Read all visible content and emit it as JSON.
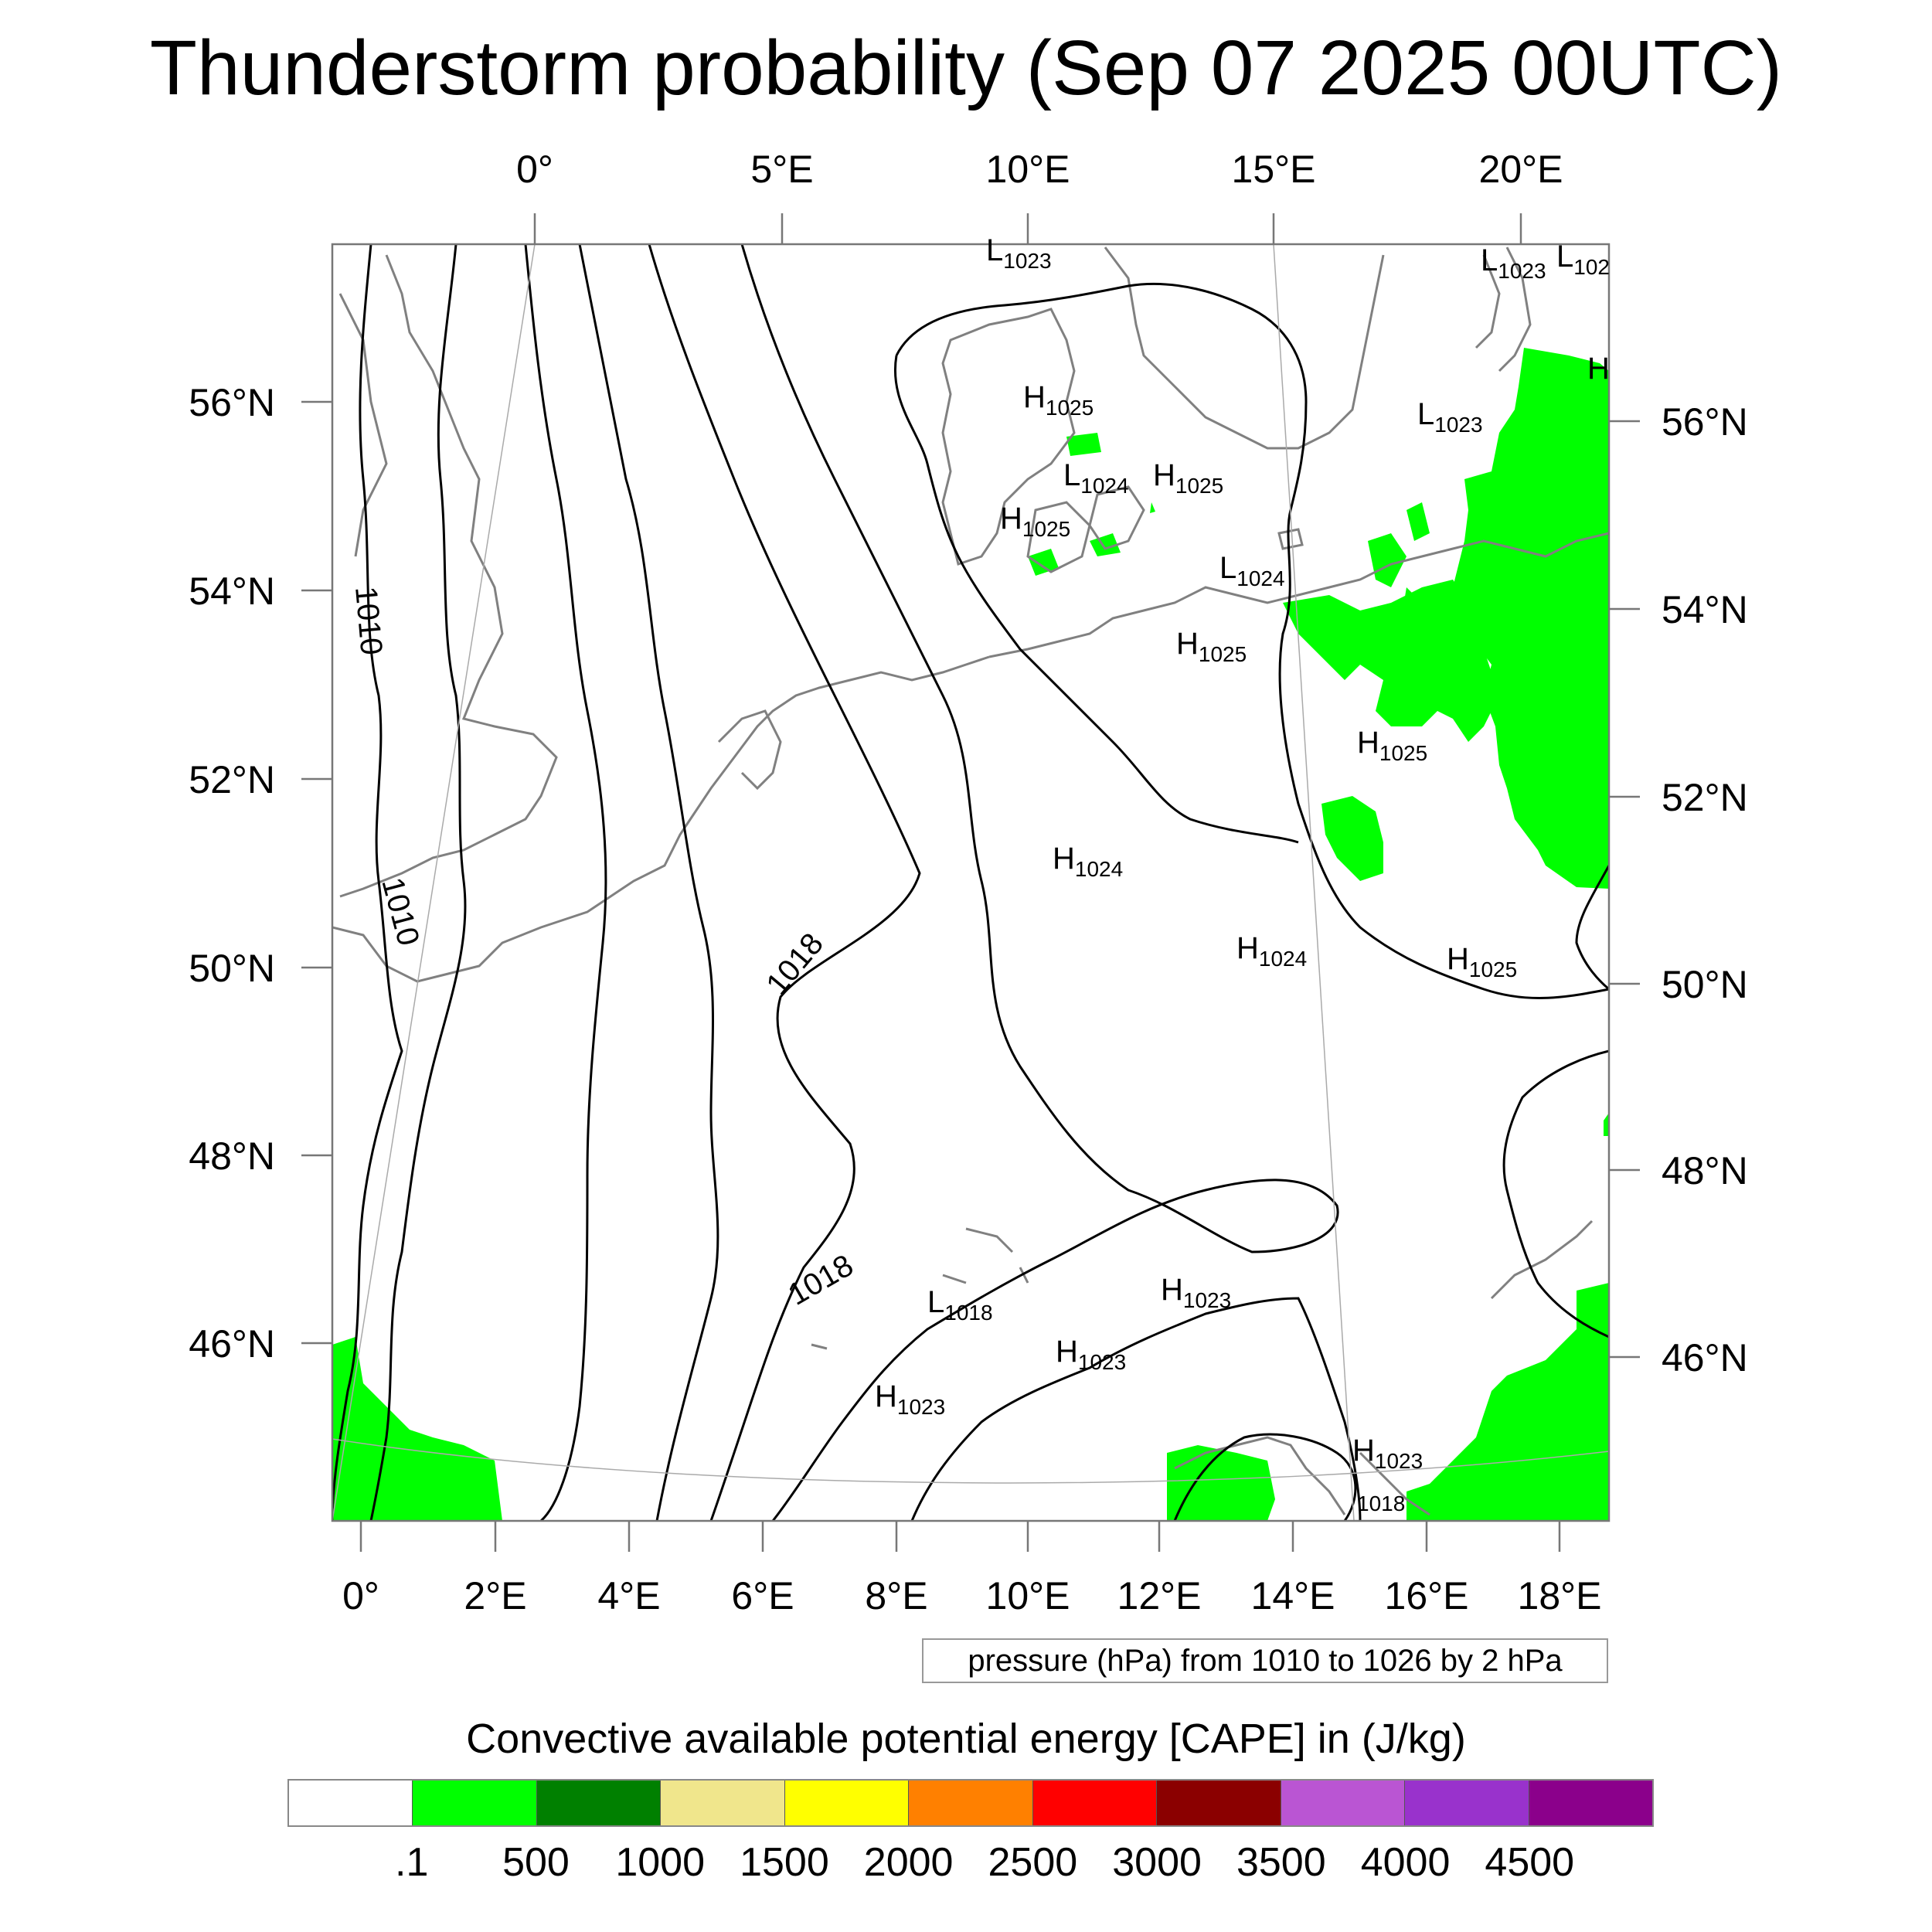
{
  "title": "Thunderstorm probability (Sep 07 2025 00UTC)",
  "top_axis_labels": [
    "0°",
    "5°E",
    "10°E",
    "15°E",
    "20°E"
  ],
  "bottom_axis_labels": [
    "0°",
    "2°E",
    "4°E",
    "6°E",
    "8°E",
    "10°E",
    "12°E",
    "14°E",
    "16°E",
    "18°E"
  ],
  "left_axis_labels": [
    "56°N",
    "54°N",
    "52°N",
    "50°N",
    "48°N",
    "46°N"
  ],
  "right_axis_labels": [
    "56°N",
    "54°N",
    "52°N",
    "50°N",
    "48°N",
    "46°N"
  ],
  "isobar_labels": [
    "1010",
    "1010",
    "1018",
    "1018"
  ],
  "pressure_centers": [
    {
      "letter": "L",
      "value": "1023"
    },
    {
      "letter": "L",
      "value": "1023"
    },
    {
      "letter": "L",
      "value": "102"
    },
    {
      "letter": "H",
      "value": ""
    },
    {
      "letter": "H",
      "value": "1025"
    },
    {
      "letter": "L",
      "value": "1023"
    },
    {
      "letter": "L",
      "value": "1024"
    },
    {
      "letter": "H",
      "value": "1025"
    },
    {
      "letter": "H",
      "value": "1025"
    },
    {
      "letter": "L",
      "value": "1024"
    },
    {
      "letter": "H",
      "value": "1025"
    },
    {
      "letter": "H",
      "value": "1025"
    },
    {
      "letter": "H",
      "value": "1024"
    },
    {
      "letter": "H",
      "value": "1024"
    },
    {
      "letter": "H",
      "value": "1025"
    },
    {
      "letter": "H",
      "value": "1023"
    },
    {
      "letter": "L",
      "value": "1018"
    },
    {
      "letter": "H",
      "value": "1023"
    },
    {
      "letter": "H",
      "value": "1023"
    },
    {
      "letter": "H",
      "value": "1023"
    },
    {
      "letter": "",
      "value": "1018"
    }
  ],
  "contour_info": "pressure (hPa) from 1010 to 1026 by 2 hPa",
  "colorbar": {
    "title": "Convective available potential energy [CAPE] in (J/kg)",
    "colors": [
      "#ffffff",
      "#00ff00",
      "#008000",
      "#f0e68c",
      "#ffff00",
      "#ff8000",
      "#ff0000",
      "#8b0000",
      "#ba55d3",
      "#9932cc",
      "#8b008b"
    ],
    "labels": [
      ".1",
      "500",
      "1000",
      "1500",
      "2000",
      "2500",
      "3000",
      "3500",
      "4000",
      "4500"
    ]
  },
  "colors": {
    "cape_fill": "#00ff00",
    "isobar": "#000000",
    "coastline": "#808080",
    "grid": "#aaaaaa"
  }
}
